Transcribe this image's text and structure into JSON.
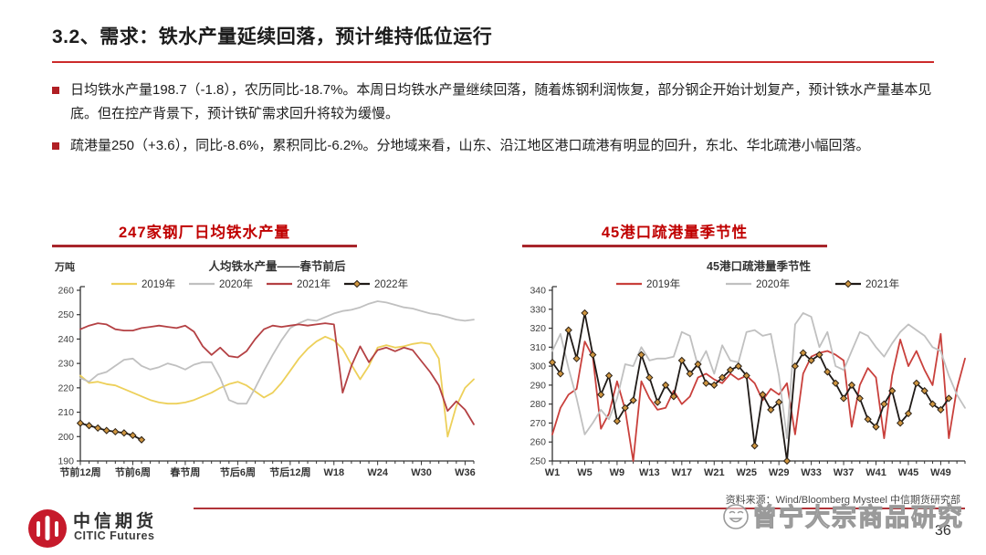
{
  "page": {
    "title": "3.2、需求：铁水产量延续回落，预计维持低位运行",
    "page_number": "36",
    "accent_color": "#C00000",
    "header_underline_color": "#A8262B"
  },
  "bullets": [
    {
      "text": "日均铁水产量198.7（-1.8），农历同比-18.7%。本周日均铁水产量继续回落，随着炼钢利润恢复，部分钢企开始计划复产，预计铁水产量基本见底。但在控产背景下，预计铁矿需求回升将较为缓慢。"
    },
    {
      "text": "疏港量250（+3.6），同比-8.6%，累积同比-6.2%。分地域来看，山东、沿江地区港口疏港有明显的回升，东北、华北疏港小幅回落。"
    }
  ],
  "footer": {
    "logo_cn": "中信期货",
    "logo_en": "CITIC Futures",
    "source": "资料来源：Wind/Bloomberg Mysteel 中信期货研究部",
    "watermark": "曾宁大宗商品研究"
  },
  "chart_data": [
    {
      "type": "line",
      "header": "247家钢厂日均铁水产量",
      "title": "人均铁水产量——春节前后",
      "ylabel": "万吨",
      "ylim": [
        190,
        260
      ],
      "ytick_step": 10,
      "x_count": 46,
      "grid": false,
      "legend_position": "top",
      "xticks": [
        {
          "i": 0,
          "label": "节前12周"
        },
        {
          "i": 6,
          "label": "节前6周"
        },
        {
          "i": 12,
          "label": "春节周"
        },
        {
          "i": 18,
          "label": "节后6周"
        },
        {
          "i": 24,
          "label": "节后12周"
        },
        {
          "i": 29,
          "label": "W18"
        },
        {
          "i": 34,
          "label": "W24"
        },
        {
          "i": 39,
          "label": "W30"
        },
        {
          "i": 44,
          "label": "W36"
        }
      ],
      "series": [
        {
          "name": "2019年",
          "color": "#EDD05A",
          "values": [
            225,
            222,
            222.5,
            221.5,
            221,
            219.5,
            218,
            216.5,
            215,
            214,
            213.5,
            213.5,
            214,
            215,
            216.5,
            218,
            220,
            221.5,
            222.5,
            221,
            218.5,
            216,
            218,
            222,
            227,
            232,
            236,
            239,
            241,
            239.5,
            236,
            229.5,
            223.5,
            229,
            236.5,
            237.5,
            236.5,
            237,
            238,
            238.5,
            238,
            232,
            200,
            212.5,
            220,
            223.5
          ]
        },
        {
          "name": "2020年",
          "color": "#C0C0C0",
          "values": [
            224,
            222.5,
            225.5,
            226.5,
            229,
            231.5,
            232,
            229,
            227.5,
            228.5,
            230,
            229,
            227.5,
            229.5,
            230.5,
            230.5,
            224,
            215,
            213.5,
            213.5,
            220,
            227,
            233.5,
            239.5,
            244.5,
            246.5,
            248,
            247.5,
            249,
            250.5,
            251.5,
            252,
            253,
            254.5,
            255.5,
            255,
            254,
            253,
            252.5,
            251.5,
            250.5,
            250,
            249,
            248,
            247.5,
            248
          ]
        },
        {
          "name": "2021年",
          "color": "#B44144",
          "values": [
            244,
            245.5,
            246.5,
            246,
            244,
            243.5,
            243.5,
            244.5,
            245,
            245.5,
            245,
            244.5,
            245.5,
            243,
            237,
            233.5,
            236.5,
            233,
            232.5,
            235,
            240,
            244,
            245.5,
            245,
            245.5,
            246,
            245.5,
            246,
            246.5,
            246,
            218,
            229,
            237,
            230.5,
            235.5,
            236.5,
            235,
            236.5,
            235.5,
            231,
            226.5,
            221,
            210.5,
            214.5,
            211,
            205
          ]
        },
        {
          "name": "2022年",
          "color": "#1F1A17",
          "marker": "diamond",
          "marker_fill": "#CE9540",
          "values": [
            205.5,
            204.5,
            203.5,
            202.5,
            202,
            201.5,
            200.5,
            198.7,
            null,
            null,
            null,
            null,
            null,
            null,
            null,
            null,
            null,
            null,
            null,
            null,
            null,
            null,
            null,
            null,
            null,
            null,
            null,
            null,
            null,
            null,
            null,
            null,
            null,
            null,
            null,
            null,
            null,
            null,
            null,
            null,
            null,
            null,
            null,
            null,
            null,
            null
          ]
        }
      ]
    },
    {
      "type": "line",
      "header": "45港口疏港量季节性",
      "title": "45港口疏港量季节性",
      "ylabel": "",
      "ylim": [
        250,
        340
      ],
      "ytick_step": 10,
      "x_count": 52,
      "grid": false,
      "legend_position": "top",
      "xticks": [
        {
          "i": 0,
          "label": "W1"
        },
        {
          "i": 4,
          "label": "W5"
        },
        {
          "i": 8,
          "label": "W9"
        },
        {
          "i": 12,
          "label": "W13"
        },
        {
          "i": 16,
          "label": "W17"
        },
        {
          "i": 20,
          "label": "W21"
        },
        {
          "i": 24,
          "label": "W25"
        },
        {
          "i": 28,
          "label": "W29"
        },
        {
          "i": 32,
          "label": "W33"
        },
        {
          "i": 36,
          "label": "W37"
        },
        {
          "i": 40,
          "label": "W41"
        },
        {
          "i": 44,
          "label": "W45"
        },
        {
          "i": 48,
          "label": "W49"
        }
      ],
      "series": [
        {
          "name": "2019年",
          "color": "#C9403C",
          "values": [
            264,
            278,
            285,
            288,
            313,
            305,
            267,
            275,
            292,
            277,
            250,
            292,
            283,
            277,
            278,
            287,
            280,
            284,
            294,
            296,
            293,
            291,
            296,
            293,
            295,
            291,
            282,
            288,
            285,
            291,
            264,
            296,
            305,
            307,
            308,
            306,
            303,
            268,
            290,
            299,
            294,
            262,
            295,
            314,
            300,
            308,
            298,
            290,
            317,
            262,
            288,
            304
          ]
        },
        {
          "name": "2020年",
          "color": "#C0C0C0",
          "values": [
            308,
            317,
            299,
            283,
            264,
            270,
            277,
            272,
            283,
            301,
            300,
            310,
            303,
            304,
            304,
            305,
            318,
            316,
            300,
            308,
            296,
            311,
            303,
            302,
            318,
            319,
            316,
            317,
            295,
            262,
            322,
            328,
            326,
            310,
            318,
            300,
            298,
            308,
            318,
            316,
            310,
            305,
            312,
            318,
            322,
            319,
            316,
            310,
            308,
            295,
            285,
            278
          ]
        },
        {
          "name": "2021年",
          "color": "#1F1A17",
          "marker": "diamond",
          "marker_fill": "#CE9540",
          "values": [
            302,
            296,
            319,
            304,
            328,
            306,
            285,
            295,
            271,
            278,
            282,
            306,
            294,
            281,
            290,
            284,
            303,
            296,
            301,
            291,
            290,
            294,
            298,
            300,
            295,
            258,
            285,
            277,
            281,
            250,
            300,
            307,
            303,
            306,
            297,
            291,
            283,
            290,
            283,
            272,
            268,
            280,
            287,
            270,
            275,
            291,
            287,
            280,
            277,
            283,
            null,
            null
          ]
        }
      ]
    }
  ]
}
